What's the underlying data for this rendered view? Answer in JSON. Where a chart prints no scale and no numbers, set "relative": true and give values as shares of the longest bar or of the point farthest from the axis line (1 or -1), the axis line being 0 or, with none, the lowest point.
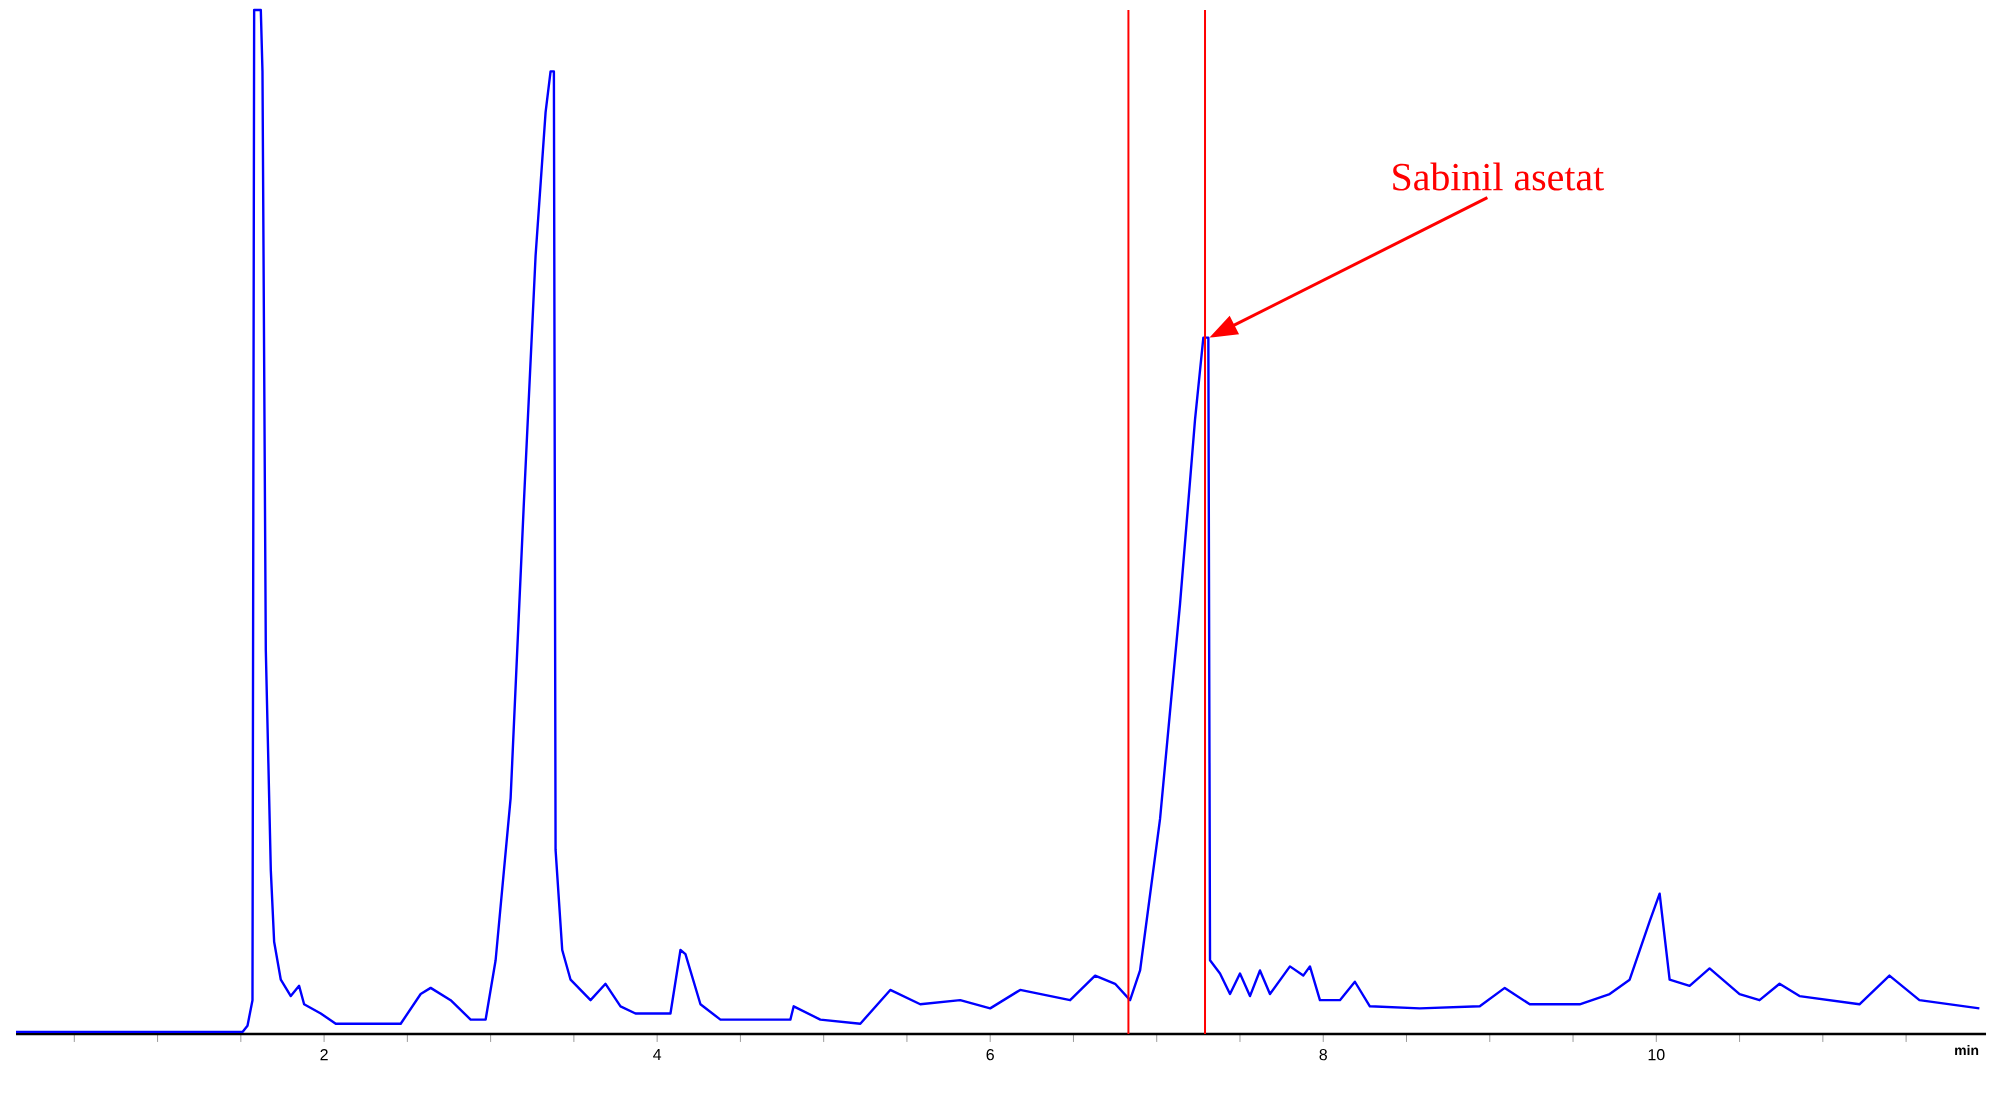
{
  "chart_data": {
    "type": "line",
    "relative": true,
    "xlabel": "min",
    "xlim": [
      0.15,
      11.98
    ],
    "xticks": [
      {
        "value": 0.5,
        "label": null
      },
      {
        "value": 1,
        "label": null
      },
      {
        "value": 1.5,
        "label": null
      },
      2,
      {
        "value": 2.5,
        "label": null
      },
      {
        "value": 3,
        "label": null
      },
      {
        "value": 3.5,
        "label": null
      },
      4,
      {
        "value": 4.5,
        "label": null
      },
      {
        "value": 5,
        "label": null
      },
      {
        "value": 5.5,
        "label": null
      },
      6,
      {
        "value": 6.5,
        "label": null
      },
      {
        "value": 7,
        "label": null
      },
      {
        "value": 7.5,
        "label": null
      },
      8,
      {
        "value": 8.5,
        "label": null
      },
      {
        "value": 9,
        "label": null
      },
      {
        "value": 9.5,
        "label": null
      },
      10,
      {
        "value": 10.5,
        "label": null
      },
      {
        "value": 11,
        "label": null
      },
      {
        "value": 11.5,
        "label": null
      }
    ],
    "tick_labels": "x",
    "grid": false,
    "marker": "none",
    "line_style": "solid",
    "series": [
      {
        "color": "#0000ff",
        "x": [
          0.15,
          1.51,
          1.54,
          1.57,
          1.58,
          1.62,
          1.63,
          1.65,
          1.68,
          1.7,
          1.74,
          1.8,
          1.85,
          1.88,
          1.98,
          2.07,
          2.46,
          2.58,
          2.64,
          2.76,
          2.88,
          2.97,
          3.03,
          3.12,
          3.2,
          3.27,
          3.33,
          3.36,
          3.38,
          3.39,
          3.43,
          3.48,
          3.6,
          3.69,
          3.78,
          3.87,
          4.08,
          4.14,
          4.17,
          4.26,
          4.38,
          4.8,
          4.82,
          4.98,
          5.22,
          5.4,
          5.58,
          5.82,
          6.0,
          6.18,
          6.48,
          6.63,
          6.75,
          6.84,
          6.9,
          7.02,
          7.14,
          7.23,
          7.28,
          7.31,
          7.32,
          7.38,
          7.44,
          7.5,
          7.56,
          7.62,
          7.68,
          7.8,
          7.88,
          7.92,
          7.98,
          8.1,
          8.19,
          8.28,
          8.58,
          8.94,
          9.09,
          9.24,
          9.54,
          9.72,
          9.84,
          9.96,
          10.02,
          10.08,
          10.2,
          10.32,
          10.5,
          10.62,
          10.74,
          10.86,
          11.22,
          11.4,
          11.58,
          11.94
        ],
        "values": [
          0.002,
          0.002,
          0.008,
          0.033,
          1.0,
          1.0,
          0.94,
          0.375,
          0.16,
          0.09,
          0.053,
          0.037,
          0.047,
          0.029,
          0.02,
          0.01,
          0.01,
          0.039,
          0.045,
          0.033,
          0.014,
          0.014,
          0.072,
          0.23,
          0.52,
          0.76,
          0.9,
          0.94,
          0.94,
          0.18,
          0.082,
          0.053,
          0.033,
          0.049,
          0.027,
          0.02,
          0.02,
          0.082,
          0.078,
          0.029,
          0.014,
          0.014,
          0.027,
          0.014,
          0.01,
          0.043,
          0.029,
          0.033,
          0.025,
          0.043,
          0.033,
          0.057,
          0.049,
          0.033,
          0.062,
          0.21,
          0.42,
          0.6,
          0.68,
          0.68,
          0.072,
          0.059,
          0.039,
          0.059,
          0.037,
          0.062,
          0.039,
          0.066,
          0.057,
          0.066,
          0.033,
          0.033,
          0.051,
          0.027,
          0.025,
          0.027,
          0.045,
          0.029,
          0.029,
          0.039,
          0.053,
          0.11,
          0.137,
          0.053,
          0.047,
          0.064,
          0.039,
          0.033,
          0.049,
          0.037,
          0.029,
          0.057,
          0.033,
          0.025
        ]
      }
    ],
    "ref_lines": [
      {
        "axis": "x",
        "value": 6.83,
        "color": "#ff0000"
      },
      {
        "axis": "x",
        "value": 7.29,
        "color": "#ff0000"
      }
    ],
    "annotations": [
      "Sabinil asetat"
    ]
  }
}
